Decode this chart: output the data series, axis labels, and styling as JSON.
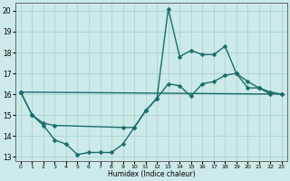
{
  "xlabel": "Humidex (Indice chaleur)",
  "background_color": "#cceae8",
  "grid_color": "#aad4d2",
  "line_color": "#1a6b6b",
  "xlim": [
    -0.5,
    23.5
  ],
  "ylim": [
    12.8,
    20.4
  ],
  "yticks": [
    13,
    14,
    15,
    16,
    17,
    18,
    19,
    20
  ],
  "xticks": [
    0,
    1,
    2,
    3,
    4,
    5,
    6,
    7,
    8,
    9,
    10,
    11,
    12,
    13,
    14,
    15,
    16,
    17,
    18,
    19,
    20,
    21,
    22,
    23
  ],
  "line1_x": [
    0,
    1,
    2,
    3,
    4,
    5,
    6,
    7,
    8,
    9,
    10,
    11,
    12,
    13,
    14,
    15,
    16,
    17,
    18,
    19,
    20,
    21,
    22
  ],
  "line1_y": [
    16.1,
    15.0,
    14.5,
    13.8,
    13.6,
    13.1,
    13.2,
    13.2,
    13.2,
    13.6,
    14.4,
    15.2,
    15.8,
    20.1,
    17.8,
    18.1,
    17.9,
    17.9,
    18.3,
    17.0,
    16.3,
    16.3,
    16.0
  ],
  "line2_x": [
    0,
    1,
    2,
    3,
    9,
    10,
    11,
    12,
    13,
    14,
    15,
    16,
    17,
    18,
    19,
    20,
    21,
    22,
    23
  ],
  "line2_y": [
    16.1,
    15.0,
    14.6,
    14.5,
    14.4,
    14.4,
    15.2,
    15.8,
    16.5,
    16.4,
    15.9,
    16.5,
    16.6,
    16.9,
    17.0,
    16.6,
    16.3,
    16.1,
    16.0
  ],
  "line3_x": [
    0,
    23
  ],
  "line3_y": [
    16.1,
    16.0
  ],
  "marker_size": 2.5,
  "linewidth": 1.0
}
